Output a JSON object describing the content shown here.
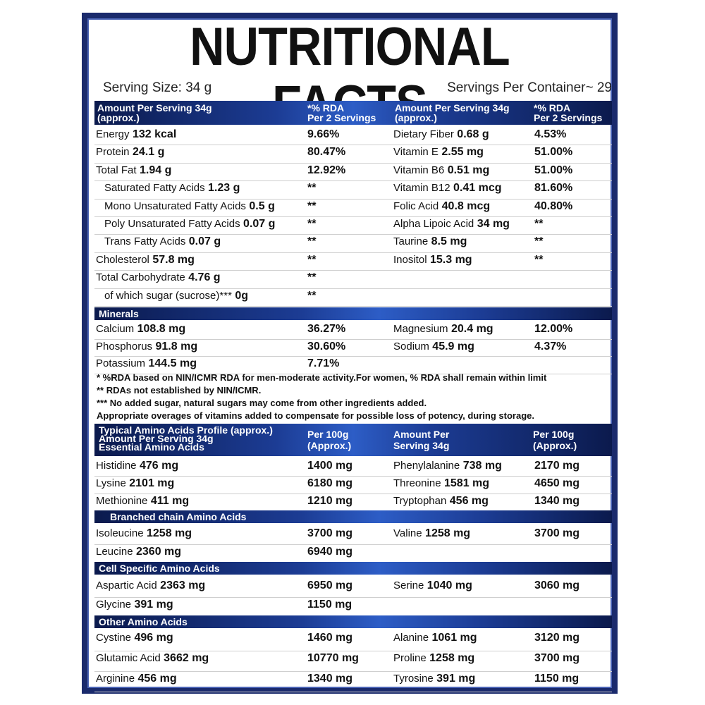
{
  "title": "NUTRITIONAL FACTS",
  "serving_size": "Serving Size: 34 g",
  "servings_per_container": "Servings Per Container~ 29",
  "header1": {
    "c1": "Amount Per Serving 34g\n(approx.)",
    "c2": "*% RDA\nPer 2 Servings",
    "c3": "Amount Per Serving 34g\n(approx.)",
    "c4": "*% RDA\nPer 2 Servings"
  },
  "nutrients_rows": [
    {
      "l_name": "Energy",
      "l_amount": "132 kcal",
      "l_rda": "9.66%",
      "r_name": "Dietary Fiber",
      "r_amount": "0.68 g",
      "r_rda": "4.53%"
    },
    {
      "l_name": "Protein",
      "l_amount": "24.1 g",
      "l_rda": "80.47%",
      "r_name": "Vitamin E",
      "r_amount": "2.55 mg",
      "r_rda": "51.00%"
    },
    {
      "l_name": "Total Fat",
      "l_amount": "1.94 g",
      "l_rda": "12.92%",
      "r_name": "Vitamin B6",
      "r_amount": "0.51 mg",
      "r_rda": "51.00%"
    },
    {
      "l_name": "Saturated Fatty Acids",
      "l_amount": "1.23 g",
      "l_rda": "**",
      "r_name": "Vitamin B12",
      "r_amount": "0.41 mcg",
      "r_rda": "81.60%"
    },
    {
      "l_name": "Mono Unsaturated Fatty Acids",
      "l_amount": "0.5 g",
      "l_rda": "**",
      "r_name": "Folic Acid",
      "r_amount": "40.8 mcg",
      "r_rda": "40.80%"
    },
    {
      "l_name": "Poly Unsaturated Fatty Acids",
      "l_amount": "0.07 g",
      "l_rda": "**",
      "r_name": "Alpha Lipoic Acid",
      "r_amount": "34 mg",
      "r_rda": "**"
    },
    {
      "l_name": "Trans Fatty Acids",
      "l_amount": "0.07 g",
      "l_rda": "**",
      "r_name": "Taurine",
      "r_amount": "8.5 mg",
      "r_rda": "**"
    },
    {
      "l_name": "Cholesterol",
      "l_amount": "57.8 mg",
      "l_rda": "**",
      "r_name": "Inositol",
      "r_amount": "15.3 mg",
      "r_rda": "**"
    },
    {
      "l_name": "Total Carbohydrate",
      "l_amount": "4.76 g",
      "l_rda": "**",
      "r_name": "",
      "r_amount": "",
      "r_rda": ""
    },
    {
      "l_name": "of which sugar (sucrose)***",
      "l_amount": "0g",
      "l_rda": "**",
      "r_name": "",
      "r_amount": "",
      "r_rda": ""
    }
  ],
  "minerals_label": "Minerals",
  "minerals_rows": [
    {
      "l_name": "Calcium",
      "l_amount": "108.8 mg",
      "l_rda": "36.27%",
      "r_name": "Magnesium",
      "r_amount": "20.4 mg",
      "r_rda": "12.00%"
    },
    {
      "l_name": "Phosphorus",
      "l_amount": "91.8 mg",
      "l_rda": "30.60%",
      "r_name": "Sodium",
      "r_amount": "45.9 mg",
      "r_rda": "4.37%"
    },
    {
      "l_name": "Potassium",
      "l_amount": "144.5 mg",
      "l_rda": "7.71%",
      "r_name": "",
      "r_amount": "",
      "r_rda": ""
    }
  ],
  "notes": [
    "* %RDA based on NIN/ICMR RDA for men-moderate activity.For women, % RDA shall remain within limit",
    "** RDAs not established by NIN/ICMR.",
    "***  No added sugar, natural sugars may come from other ingredients added.",
    "Appropriate overages of vitamins added to compensate for possible loss of potency, during storage."
  ],
  "header2": {
    "c1": "Typical Amino Acids Profile (approx.)\nAmount Per Serving 34g\nEssential Amino Acids",
    "c2": "Per 100g\n(Approx.)",
    "c3": "Amount Per\nServing 34g",
    "c4": "Per 100g\n(Approx.)"
  },
  "essential_rows": [
    {
      "l_name": "Histidine",
      "l_amount": "476 mg",
      "l_per100": "1400 mg",
      "r_name": "Phenylalanine",
      "r_amount": "738 mg",
      "r_per100": "2170 mg"
    },
    {
      "l_name": "Lysine",
      "l_amount": "2101 mg",
      "l_per100": "6180 mg",
      "r_name": "Threonine",
      "r_amount": "1581 mg",
      "r_per100": "4650 mg"
    },
    {
      "l_name": "Methionine",
      "l_amount": "411 mg",
      "l_per100": "1210 mg",
      "r_name": "Tryptophan",
      "r_amount": "456 mg",
      "r_per100": "1340 mg"
    }
  ],
  "bcaa_label": "Branched chain Amino Acids",
  "bcaa_rows": [
    {
      "l_name": "Isoleucine",
      "l_amount": "1258 mg",
      "l_per100": "3700 mg",
      "r_name": "Valine",
      "r_amount": "1258 mg",
      "r_per100": "3700 mg"
    },
    {
      "l_name": "Leucine",
      "l_amount": "2360 mg",
      "l_per100": "6940 mg",
      "r_name": "",
      "r_amount": "",
      "r_per100": ""
    }
  ],
  "cell_label": "Cell Specific Amino Acids",
  "cell_rows": [
    {
      "l_name": "Aspartic Acid",
      "l_amount": "2363 mg",
      "l_per100": "6950 mg",
      "r_name": "Serine",
      "r_amount": "1040 mg",
      "r_per100": "3060 mg"
    },
    {
      "l_name": "Glycine",
      "l_amount": "391 mg",
      "l_per100": "1150 mg",
      "r_name": "",
      "r_amount": "",
      "r_per100": ""
    }
  ],
  "other_label": "Other Amino Acids",
  "other_rows": [
    {
      "l_name": "Cystine",
      "l_amount": "496 mg",
      "l_per100": "1460 mg",
      "r_name": "Alanine",
      "r_amount": "1061 mg",
      "r_per100": "3120 mg"
    },
    {
      "l_name": "Glutamic Acid",
      "l_amount": "3662 mg",
      "l_per100": "10770 mg",
      "r_name": "Proline",
      "r_amount": "1258 mg",
      "r_per100": "3700 mg"
    },
    {
      "l_name": "Arginine",
      "l_amount": "456 mg",
      "l_per100": "1340 mg",
      "r_name": "Tyrosine",
      "r_amount": "391 mg",
      "r_per100": "1150 mg"
    }
  ],
  "colors": {
    "frame": "#1a2a6c",
    "header_dark": "#0b1a4d",
    "header_light": "#2d5dc6"
  }
}
